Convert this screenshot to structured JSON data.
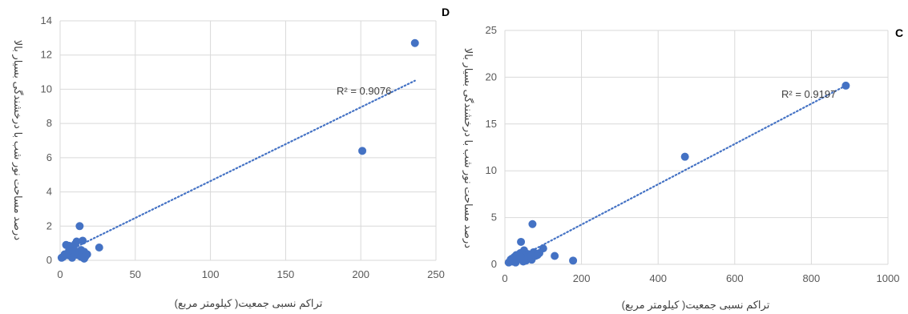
{
  "chart_data": [
    {
      "type": "scatter",
      "panel_label": "D",
      "xlabel": "تراکم نسبی جمعیت( کیلومتر مربع)",
      "ylabel": "درصد مساحت نور شب با درخشندگی بسیار بالا",
      "xlim": [
        0,
        250
      ],
      "ylim": [
        0,
        14
      ],
      "xticks": [
        0,
        50,
        100,
        150,
        200,
        250
      ],
      "yticks": [
        0,
        2,
        4,
        6,
        8,
        10,
        12,
        14
      ],
      "grid": true,
      "marker_color": "#4472c4",
      "trendline": {
        "label": "R² = 0.9076",
        "from": [
          3,
          0.45
        ],
        "to": [
          236,
          10.5
        ],
        "color": "#4472c4"
      },
      "points": [
        [
          236,
          12.7
        ],
        [
          201,
          6.4
        ],
        [
          26,
          0.75
        ],
        [
          13,
          2.0
        ],
        [
          15,
          1.15
        ],
        [
          4,
          0.9
        ],
        [
          6,
          0.85
        ],
        [
          8,
          0.7
        ],
        [
          10,
          0.95
        ],
        [
          11,
          1.1
        ],
        [
          12,
          0.45
        ],
        [
          14,
          0.6
        ],
        [
          16,
          0.5
        ],
        [
          17,
          0.25
        ],
        [
          16,
          0.1
        ],
        [
          18,
          0.35
        ],
        [
          3,
          0.35
        ],
        [
          2,
          0.2
        ],
        [
          1,
          0.15
        ],
        [
          5,
          0.3
        ],
        [
          7,
          0.25
        ],
        [
          9,
          0.4
        ],
        [
          10,
          0.55
        ],
        [
          6,
          0.6
        ],
        [
          12,
          0.3
        ],
        [
          14,
          0.2
        ],
        [
          8,
          0.15
        ]
      ]
    },
    {
      "type": "scatter",
      "panel_label": "C",
      "xlabel": "تراکم نسبی جمعیت( کیلومتر مربع)",
      "ylabel": "درصد مساحت نور شب با درخشندگی بسیار بالا",
      "xlim": [
        0,
        1000
      ],
      "ylim": [
        0,
        25
      ],
      "xticks": [
        0,
        200,
        400,
        600,
        800,
        1000
      ],
      "yticks": [
        0,
        5,
        10,
        15,
        20,
        25
      ],
      "grid": true,
      "marker_color": "#4472c4",
      "trendline": {
        "label": "R² = 0.9197",
        "from": [
          12,
          0.2
        ],
        "to": [
          885,
          19.0
        ],
        "color": "#4472c4"
      },
      "points": [
        [
          890,
          19.1
        ],
        [
          470,
          11.5
        ],
        [
          72,
          4.3
        ],
        [
          42,
          2.4
        ],
        [
          100,
          1.7
        ],
        [
          130,
          0.9
        ],
        [
          178,
          0.4
        ],
        [
          10,
          0.2
        ],
        [
          15,
          0.5
        ],
        [
          20,
          0.3
        ],
        [
          25,
          0.8
        ],
        [
          30,
          1.0
        ],
        [
          35,
          0.6
        ],
        [
          40,
          1.2
        ],
        [
          45,
          0.9
        ],
        [
          50,
          1.5
        ],
        [
          55,
          0.4
        ],
        [
          60,
          1.1
        ],
        [
          65,
          0.7
        ],
        [
          70,
          0.5
        ],
        [
          75,
          1.3
        ],
        [
          80,
          0.9
        ],
        [
          85,
          1.0
        ],
        [
          90,
          1.2
        ],
        [
          28,
          0.2
        ],
        [
          48,
          0.3
        ],
        [
          18,
          0.6
        ]
      ]
    }
  ]
}
